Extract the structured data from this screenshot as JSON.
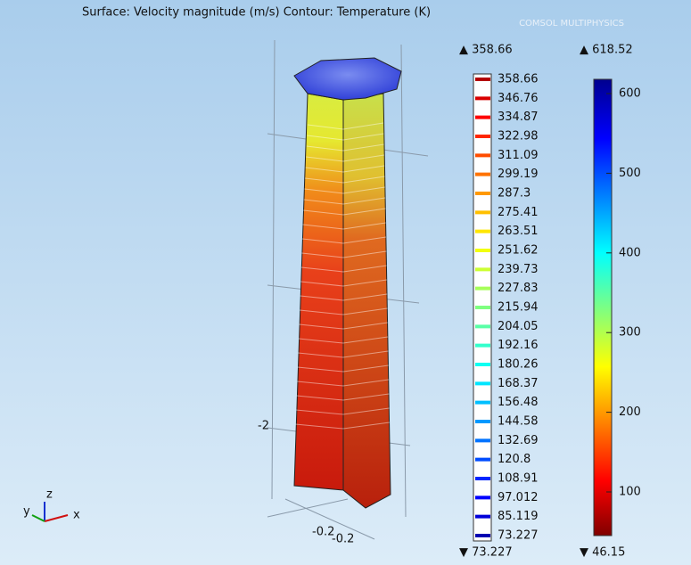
{
  "header": {
    "title": "Surface: Velocity magnitude (m/s)  Contour: Temperature (K)",
    "logo": "COMSOL MULTIPHYSICS"
  },
  "contour_legend": {
    "max": "▲ 358.66",
    "levels": [
      "358.66",
      "346.76",
      "334.87",
      "322.98",
      "311.09",
      "299.19",
      "287.3",
      "275.41",
      "263.51",
      "251.62",
      "239.73",
      "227.83",
      "215.94",
      "204.05",
      "192.16",
      "180.26",
      "168.37",
      "156.48",
      "144.58",
      "132.69",
      "120.8",
      "108.91",
      "97.012",
      "85.119",
      "73.227"
    ],
    "min": "▼ 73.227"
  },
  "color_legend": {
    "max": "▲ 618.52",
    "ticks": [
      "600",
      "500",
      "400",
      "300",
      "200",
      "100"
    ],
    "min": "▼ 46.15"
  },
  "axes": {
    "z_label": "-2",
    "x_label_1": "-0.2",
    "x_label_2": "-0.2"
  },
  "triad": {
    "z": "z",
    "y": "y",
    "x": "x"
  }
}
